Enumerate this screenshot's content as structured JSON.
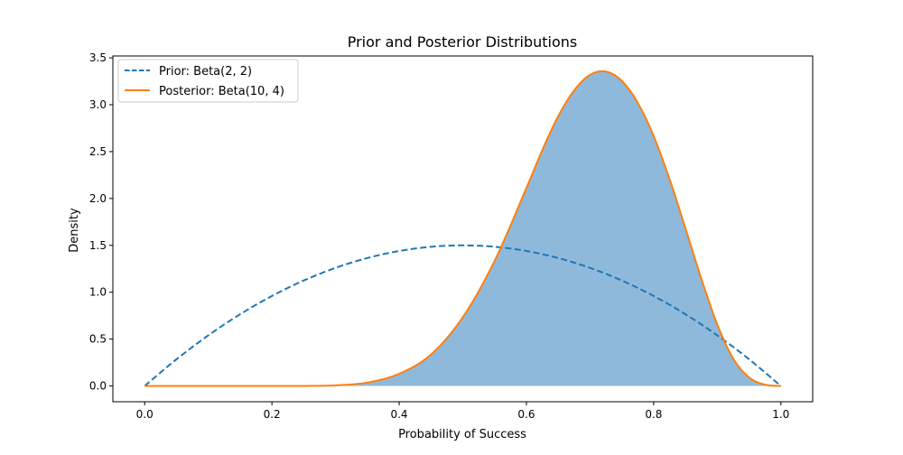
{
  "chart_data": {
    "type": "area",
    "title": "Prior and Posterior Distributions",
    "xlabel": "Probability of Success",
    "ylabel": "Density",
    "xlim": [
      -0.05,
      1.05
    ],
    "ylim": [
      -0.168,
      3.52
    ],
    "xticks": [
      0.0,
      0.2,
      0.4,
      0.6,
      0.8,
      1.0
    ],
    "xtick_labels": [
      "0.0",
      "0.2",
      "0.4",
      "0.6",
      "0.8",
      "1.0"
    ],
    "yticks": [
      0.0,
      0.5,
      1.0,
      1.5,
      2.0,
      2.5,
      3.0,
      3.5
    ],
    "ytick_labels": [
      "0.0",
      "0.5",
      "1.0",
      "1.5",
      "2.0",
      "2.5",
      "3.0",
      "3.5"
    ],
    "grid": false,
    "legend_position": "upper-left",
    "series": [
      {
        "name": "Prior: Beta(2, 2)",
        "style": "dashed",
        "color": "#1f77b4",
        "x": [
          0.0,
          0.05,
          0.1,
          0.15,
          0.2,
          0.25,
          0.3,
          0.35,
          0.4,
          0.45,
          0.5,
          0.55,
          0.6,
          0.65,
          0.7,
          0.75,
          0.8,
          0.85,
          0.9,
          0.95,
          1.0
        ],
        "y": [
          0.0,
          0.285,
          0.54,
          0.765,
          0.96,
          1.125,
          1.26,
          1.365,
          1.44,
          1.485,
          1.5,
          1.485,
          1.44,
          1.365,
          1.26,
          1.125,
          0.96,
          0.765,
          0.54,
          0.285,
          0.0
        ]
      },
      {
        "name": "Posterior: Beta(10, 4)",
        "style": "solid",
        "color": "#ff7f0e",
        "fill_color": "#8fb9da",
        "x": [
          0.0,
          0.05,
          0.1,
          0.15,
          0.2,
          0.25,
          0.3,
          0.35,
          0.4,
          0.45,
          0.5,
          0.55,
          0.6,
          0.625,
          0.65,
          0.675,
          0.7,
          0.725,
          0.75,
          0.775,
          0.8,
          0.825,
          0.85,
          0.875,
          0.9,
          0.925,
          0.95,
          0.975,
          1.0
        ],
        "y": [
          0.0,
          0.0,
          0.0,
          0.0,
          0.0,
          0.001,
          0.007,
          0.036,
          0.13,
          0.335,
          0.733,
          1.334,
          2.111,
          2.516,
          2.877,
          3.152,
          3.319,
          3.354,
          3.254,
          3.021,
          2.667,
          2.207,
          1.681,
          1.143,
          0.656,
          0.293,
          0.09,
          0.014,
          0.0
        ]
      }
    ]
  }
}
